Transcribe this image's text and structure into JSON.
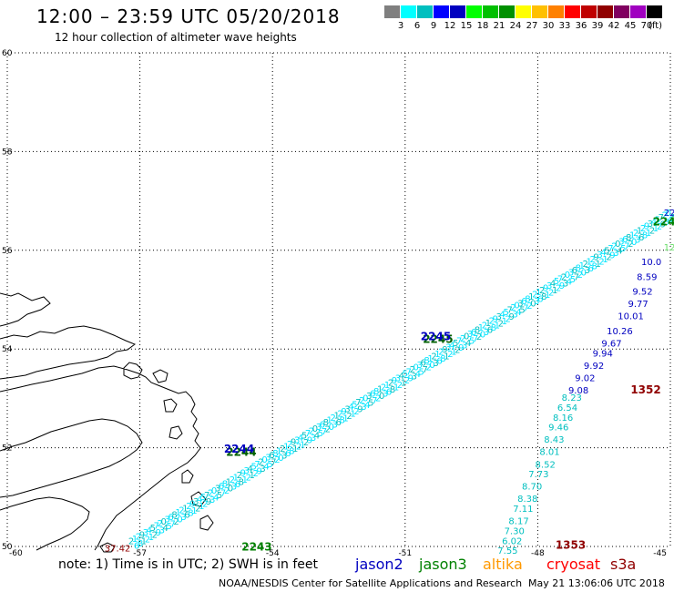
{
  "header": {
    "title": "12:00 – 23:59 UTC 05/20/2018",
    "subtitle": "12 hour collection of altimeter wave heights"
  },
  "color_scale": {
    "colors": [
      "#7f7f7f",
      "#00ffff",
      "#00bfbf",
      "#0000ff",
      "#0000c0",
      "#00ff00",
      "#00c000",
      "#009000",
      "#ffff00",
      "#ffc000",
      "#ff8000",
      "#ff0000",
      "#c00000",
      "#900000",
      "#800060",
      "#a000c0",
      "#000000"
    ],
    "ticks": [
      "3",
      "6",
      "9",
      "12",
      "15",
      "18",
      "21",
      "24",
      "27",
      "30",
      "33",
      "36",
      "39",
      "42",
      "45",
      "70"
    ],
    "unit": "(ft)"
  },
  "axes": {
    "lon_ticks": [
      "-60",
      "-57",
      "-54",
      "-51",
      "-48",
      "-45"
    ],
    "lat_ticks": [
      "50",
      "52",
      "54",
      "56",
      "58",
      "60"
    ],
    "lon_range": [
      -60,
      -45
    ],
    "lat_range": [
      50,
      60
    ],
    "grid": true,
    "grid_style": "dotted"
  },
  "tracks": {
    "cyan_band_digits": "24315627892130",
    "right_track": {
      "series": "jason2",
      "color": "#0000c0",
      "points": [
        {
          "lon": -45.2,
          "lat": 55.7,
          "swh": "10.0"
        },
        {
          "lon": -45.3,
          "lat": 55.4,
          "swh": "8.59"
        },
        {
          "lon": -45.4,
          "lat": 55.1,
          "swh": "9.52"
        },
        {
          "lon": -45.5,
          "lat": 54.85,
          "swh": "9.77"
        },
        {
          "lon": -45.6,
          "lat": 54.6,
          "swh": "10.01"
        },
        {
          "lon": -45.85,
          "lat": 54.3,
          "swh": "10.26"
        },
        {
          "lon": -46.1,
          "lat": 54.05,
          "swh": "9.67"
        },
        {
          "lon": -46.3,
          "lat": 53.85,
          "swh": "9.94"
        },
        {
          "lon": -46.5,
          "lat": 53.6,
          "swh": "9.92"
        },
        {
          "lon": -46.7,
          "lat": 53.35,
          "swh": "9.02"
        },
        {
          "lon": -46.85,
          "lat": 53.1,
          "swh": "9.08"
        }
      ]
    },
    "lower_track": {
      "color": "#00bfbf",
      "points": [
        {
          "lon": -47.0,
          "lat": 52.95,
          "swh": "8.23"
        },
        {
          "lon": -47.1,
          "lat": 52.75,
          "swh": "6.54"
        },
        {
          "lon": -47.2,
          "lat": 52.55,
          "swh": "8.16"
        },
        {
          "lon": -47.3,
          "lat": 52.35,
          "swh": "9.46"
        },
        {
          "lon": -47.4,
          "lat": 52.1,
          "swh": "8.43"
        },
        {
          "lon": -47.5,
          "lat": 51.85,
          "swh": "8.01"
        },
        {
          "lon": -47.6,
          "lat": 51.6,
          "swh": "8.52"
        },
        {
          "lon": -47.75,
          "lat": 51.4,
          "swh": "7.73"
        },
        {
          "lon": -47.9,
          "lat": 51.15,
          "swh": "8.70"
        },
        {
          "lon": -48.0,
          "lat": 50.9,
          "swh": "8.38"
        },
        {
          "lon": -48.1,
          "lat": 50.7,
          "swh": "7.11"
        },
        {
          "lon": -48.2,
          "lat": 50.45,
          "swh": "8.17"
        },
        {
          "lon": -48.3,
          "lat": 50.25,
          "swh": "7.30"
        },
        {
          "lon": -48.35,
          "lat": 50.05,
          "swh": "6.02"
        },
        {
          "lon": -48.45,
          "lat": 49.85,
          "swh": "7.55"
        }
      ]
    },
    "time_labels": [
      {
        "text": "2245",
        "color": "#006000",
        "lon": -50.6,
        "lat": 54.12
      },
      {
        "text": "2245",
        "color": "#0000c0",
        "lon": -50.65,
        "lat": 54.18
      },
      {
        "text": "2244",
        "color": "#006000",
        "lon": -55.05,
        "lat": 51.84
      },
      {
        "text": "2244",
        "color": "#0000c0",
        "lon": -55.1,
        "lat": 51.9
      },
      {
        "text": "2243",
        "color": "#008000",
        "lon": -54.7,
        "lat": 49.92
      },
      {
        "text": "224",
        "color": "#008000",
        "lon": -45.4,
        "lat": 56.5
      },
      {
        "text": "22",
        "color": "#0000c0",
        "lon": -45.15,
        "lat": 56.7
      },
      {
        "text": "1352",
        "color": "#900000",
        "lon": -45.9,
        "lat": 53.1
      },
      {
        "text": "1353",
        "color": "#900000",
        "lon": -47.6,
        "lat": 49.95
      },
      {
        "text": "37.42",
        "color": "#900000",
        "lon": -57.8,
        "lat": 49.9
      },
      {
        "text": "12",
        "color": "#66dd66",
        "lon": -45.15,
        "lat": 56.0
      }
    ]
  },
  "legend": {
    "note": "note: 1) Time is in UTC; 2) SWH is in feet",
    "series": [
      {
        "name": "jason2",
        "color": "#0000c0"
      },
      {
        "name": "jason3",
        "color": "#008000"
      },
      {
        "name": "altika",
        "color": "#ff9900"
      },
      {
        "name": "cryosat",
        "color": "#ff0000"
      },
      {
        "name": "s3a",
        "color": "#900000"
      }
    ]
  },
  "footer": {
    "credit": "NOAA/NESDIS Center for Satellite Applications and Research",
    "timestamp": "May 21 13:06:06 UTC 2018"
  }
}
